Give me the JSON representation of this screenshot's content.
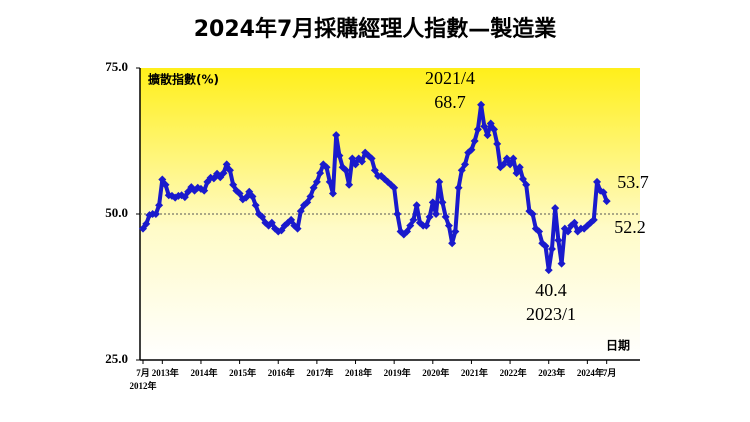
{
  "chart_data": {
    "type": "line",
    "title": "2024年7月採購經理人指數—製造業",
    "y_label": "擴散指數(%)",
    "x_label": "日期",
    "x_start_year": "2012年",
    "categories": [
      "7月",
      null,
      null,
      null,
      null,
      null,
      "2013年",
      null,
      null,
      null,
      null,
      null,
      null,
      null,
      null,
      null,
      null,
      null,
      "2014年",
      null,
      null,
      null,
      null,
      null,
      null,
      null,
      null,
      null,
      null,
      null,
      "2015年",
      null,
      null,
      null,
      null,
      null,
      null,
      null,
      null,
      null,
      null,
      null,
      "2016年",
      null,
      null,
      null,
      null,
      null,
      null,
      null,
      null,
      null,
      null,
      null,
      "2017年",
      null,
      null,
      null,
      null,
      null,
      null,
      null,
      null,
      null,
      null,
      null,
      "2018年",
      null,
      null,
      null,
      null,
      null,
      null,
      null,
      null,
      null,
      null,
      null,
      "2019年",
      null,
      null,
      null,
      null,
      null,
      null,
      null,
      null,
      null,
      null,
      null,
      "2020年",
      null,
      null,
      null,
      null,
      null,
      null,
      null,
      null,
      null,
      null,
      null,
      "2021年",
      null,
      null,
      null,
      null,
      null,
      null,
      null,
      null,
      null,
      null,
      null,
      "2022年",
      null,
      null,
      null,
      null,
      null,
      null,
      null,
      null,
      null,
      null,
      null,
      "2023年",
      null,
      null,
      null,
      null,
      null,
      null,
      null,
      null,
      null,
      null,
      null,
      "2024年",
      null,
      null,
      null,
      null,
      null,
      "7月"
    ],
    "series": [
      {
        "name": "製造業PMI",
        "color": "#1a1acc",
        "values": [
          47.5,
          48.3,
          49.8,
          50.0,
          50.0,
          51.5,
          55.9,
          55.0,
          53.2,
          53.1,
          52.8,
          53.1,
          53.2,
          52.9,
          53.8,
          54.6,
          54.0,
          54.5,
          54.3,
          54.0,
          55.5,
          56.2,
          56.1,
          56.9,
          56.3,
          57.0,
          58.5,
          57.5,
          55.0,
          54.0,
          53.5,
          52.5,
          52.8,
          53.8,
          53.0,
          51.5,
          50.0,
          49.5,
          48.5,
          48.0,
          48.5,
          47.5,
          47.0,
          47.2,
          48.0,
          48.5,
          49.0,
          48.0,
          47.5,
          50.5,
          51.5,
          52.0,
          53.0,
          54.5,
          55.5,
          57.0,
          58.5,
          58.0,
          55.5,
          53.5,
          63.5,
          60.0,
          58.0,
          57.5,
          55.0,
          59.5,
          58.5,
          59.5,
          59.0,
          60.5,
          60.0,
          59.5,
          57.5,
          56.5,
          56.5,
          56.0,
          55.5,
          55.0,
          54.5,
          50.0,
          47.0,
          46.5,
          47.0,
          48.0,
          49.0,
          51.5,
          48.5,
          48.0,
          48.0,
          49.5,
          52.0,
          50.0,
          55.5,
          52.0,
          49.5,
          48.0,
          45.0,
          47.0,
          54.5,
          57.5,
          58.5,
          60.5,
          61.0,
          62.5,
          64.5,
          68.7,
          65.0,
          63.5,
          65.5,
          64.5,
          62.0,
          58.0,
          58.5,
          59.5,
          58.5,
          59.5,
          57.0,
          58.0,
          56.0,
          55.0,
          50.5,
          50.0,
          47.5,
          47.0,
          45.0,
          44.5,
          40.4,
          44.0,
          51.0,
          45.5,
          41.5,
          47.5,
          47.0,
          48.0,
          48.5,
          47.0,
          47.5,
          47.5,
          48.0,
          48.5,
          49.0,
          55.5,
          54.0,
          53.7,
          52.2
        ]
      }
    ],
    "ylim": [
      25,
      75
    ],
    "yticks": [
      {
        "value": 25,
        "label": "25.0"
      },
      {
        "value": 50,
        "label": "50.0"
      },
      {
        "value": 75,
        "label": "75.0"
      }
    ],
    "reference_line": 50,
    "annotations": [
      "2021/4",
      "68.7",
      "40.4",
      "2023/1",
      "53.7",
      "52.2"
    ]
  }
}
